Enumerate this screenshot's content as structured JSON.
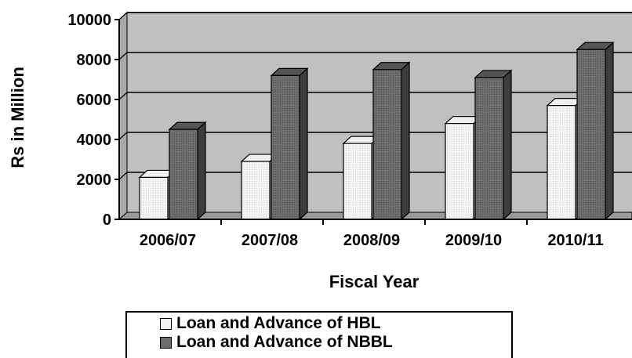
{
  "chart_data": {
    "type": "bar",
    "title": "",
    "xlabel": "Fiscal Year",
    "ylabel": "Rs in Million",
    "categories": [
      "2006/07",
      "2007/08",
      "2008/09",
      "2009/10",
      "2010/11"
    ],
    "series": [
      {
        "name": "Loan and Advance of HBL",
        "values": [
          2100,
          2900,
          3800,
          4800,
          5700
        ],
        "color": "#f2f2f2"
      },
      {
        "name": "Loan and Advance of NBBL",
        "values": [
          4500,
          7200,
          7500,
          7100,
          8500
        ],
        "color": "#6b6b6b"
      }
    ],
    "ylim": [
      0,
      10000
    ],
    "yticks": [
      "0",
      "2000",
      "4000",
      "6000",
      "8000",
      "10000"
    ],
    "grid": true,
    "legend_position": "bottom",
    "plot_background": "#c0c0c0"
  }
}
